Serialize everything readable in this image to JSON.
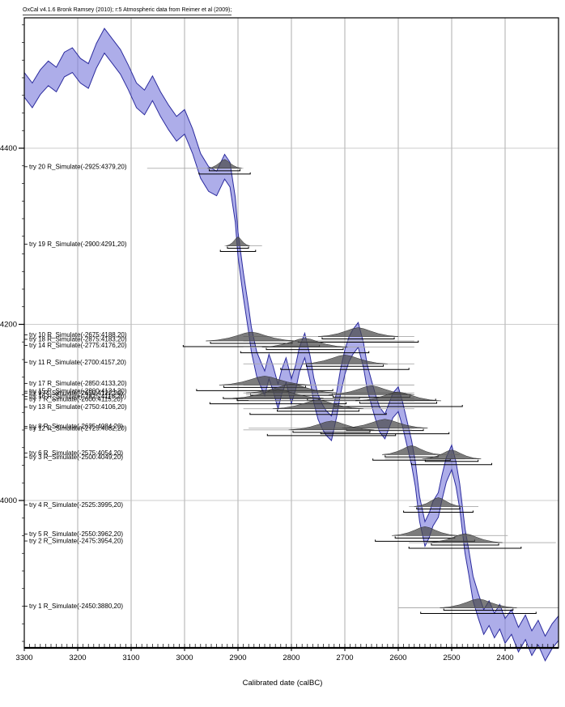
{
  "header": {
    "title": "OxCal v4.1.6 Bronk Ramsey (2010); r:5 Atmospheric data from Reimer et al (2009);"
  },
  "colors": {
    "band_fill": "#7b7bdc",
    "band_edge": "#2b2b9e",
    "distribution_fill": "#4a4a4a",
    "grid": "#999999",
    "range_line": "#aaaaaa",
    "bracket": "#000000",
    "axis": "#000000"
  },
  "chart_data": {
    "type": "line",
    "title": "OxCal v4.1.6 Bronk Ramsey (2010); r:5 Atmospheric data from Reimer et al (2009);",
    "xlabel": "Calibrated date (calBC)",
    "ylabel": "",
    "x_ticks": [
      3300,
      3200,
      3100,
      3000,
      2900,
      2800,
      2700,
      2600,
      2500,
      2400
    ],
    "y_ticks": [
      4400,
      4200,
      4000
    ],
    "x_range_calBC": [
      3300,
      2300
    ],
    "y_range_BP": [
      4548,
      3833
    ],
    "x_minor_step": 10,
    "y_minor_step": 20,
    "grid": true,
    "legend_position": "none",
    "curve_band_halfwidth_bp": 14,
    "calibration_curve": [
      [
        3300,
        4472
      ],
      [
        3285,
        4460
      ],
      [
        3270,
        4475
      ],
      [
        3255,
        4485
      ],
      [
        3240,
        4478
      ],
      [
        3225,
        4495
      ],
      [
        3210,
        4500
      ],
      [
        3195,
        4488
      ],
      [
        3180,
        4482
      ],
      [
        3165,
        4505
      ],
      [
        3150,
        4522
      ],
      [
        3135,
        4510
      ],
      [
        3120,
        4498
      ],
      [
        3105,
        4480
      ],
      [
        3090,
        4460
      ],
      [
        3075,
        4452
      ],
      [
        3060,
        4468
      ],
      [
        3045,
        4450
      ],
      [
        3030,
        4435
      ],
      [
        3015,
        4422
      ],
      [
        3000,
        4430
      ],
      [
        2985,
        4408
      ],
      [
        2970,
        4380
      ],
      [
        2955,
        4365
      ],
      [
        2940,
        4360
      ],
      [
        2925,
        4379
      ],
      [
        2915,
        4370
      ],
      [
        2905,
        4330
      ],
      [
        2900,
        4291
      ],
      [
        2890,
        4245
      ],
      [
        2880,
        4205
      ],
      [
        2875,
        4183
      ],
      [
        2865,
        4155
      ],
      [
        2855,
        4140
      ],
      [
        2850,
        4133
      ],
      [
        2842,
        4152
      ],
      [
        2835,
        4140
      ],
      [
        2825,
        4118
      ],
      [
        2818,
        4135
      ],
      [
        2810,
        4148
      ],
      [
        2800,
        4124
      ],
      [
        2792,
        4140
      ],
      [
        2785,
        4160
      ],
      [
        2775,
        4176
      ],
      [
        2765,
        4150
      ],
      [
        2758,
        4125
      ],
      [
        2750,
        4106
      ],
      [
        2742,
        4095
      ],
      [
        2735,
        4088
      ],
      [
        2725,
        4082
      ],
      [
        2715,
        4110
      ],
      [
        2708,
        4135
      ],
      [
        2700,
        4157
      ],
      [
        2692,
        4172
      ],
      [
        2685,
        4180
      ],
      [
        2675,
        4188
      ],
      [
        2665,
        4165
      ],
      [
        2658,
        4140
      ],
      [
        2650,
        4122
      ],
      [
        2642,
        4105
      ],
      [
        2635,
        4092
      ],
      [
        2625,
        4084
      ],
      [
        2618,
        4095
      ],
      [
        2610,
        4108
      ],
      [
        2600,
        4115
      ],
      [
        2592,
        4098
      ],
      [
        2585,
        4080
      ],
      [
        2575,
        4054
      ],
      [
        2568,
        4030
      ],
      [
        2560,
        3990
      ],
      [
        2550,
        3962
      ],
      [
        2542,
        3972
      ],
      [
        2535,
        3985
      ],
      [
        2525,
        3995
      ],
      [
        2518,
        4015
      ],
      [
        2510,
        4035
      ],
      [
        2500,
        4049
      ],
      [
        2492,
        4030
      ],
      [
        2485,
        4005
      ],
      [
        2475,
        3954
      ],
      [
        2468,
        3930
      ],
      [
        2460,
        3900
      ],
      [
        2450,
        3880
      ],
      [
        2440,
        3862
      ],
      [
        2430,
        3872
      ],
      [
        2420,
        3858
      ],
      [
        2410,
        3868
      ],
      [
        2400,
        3852
      ],
      [
        2388,
        3862
      ],
      [
        2375,
        3842
      ],
      [
        2362,
        3856
      ],
      [
        2350,
        3838
      ],
      [
        2338,
        3850
      ],
      [
        2325,
        3832
      ],
      [
        2312,
        3846
      ],
      [
        2300,
        3855
      ]
    ],
    "samples": [
      {
        "label": "try 20 R_Simulate(-2925:4379,20)",
        "try": 20,
        "cal_bc": 2925,
        "bp": 4379,
        "error": 20,
        "hw_yr": 32,
        "range": [
          3070,
          2890
        ]
      },
      {
        "label": "try 19 R_Simulate(-2900:4291,20)",
        "try": 19,
        "cal_bc": 2900,
        "bp": 4291,
        "error": 20,
        "hw_yr": 22,
        "range": [
          2925,
          2855
        ]
      },
      {
        "label": "try 10 R_Simulate(-2675:4188,20)",
        "try": 10,
        "cal_bc": 2675,
        "bp": 4188,
        "error": 20,
        "hw_yr": 75,
        "range": [
          2890,
          2570
        ]
      },
      {
        "label": "try 18 R_Simulate(-2875:4183,20)",
        "try": 18,
        "cal_bc": 2875,
        "bp": 4183,
        "error": 20,
        "hw_yr": 85,
        "range": [
          2890,
          2570
        ]
      },
      {
        "label": "try 14 R_Simulate(-2775:4176,20)",
        "try": 14,
        "cal_bc": 2775,
        "bp": 4176,
        "error": 20,
        "hw_yr": 80,
        "range": [
          2890,
          2570
        ]
      },
      {
        "label": "try 11 R_Simulate(-2700:4157,20)",
        "try": 11,
        "cal_bc": 2700,
        "bp": 4157,
        "error": 20,
        "hw_yr": 80,
        "range": [
          2890,
          2570
        ]
      },
      {
        "label": "try 17 R_Simulate(-2850:4133,20)",
        "try": 17,
        "cal_bc": 2850,
        "bp": 4133,
        "error": 20,
        "hw_yr": 85,
        "range": [
          2890,
          2570
        ]
      },
      {
        "label": "try 15 R_Simulate(-2800:4124,20)",
        "try": 15,
        "cal_bc": 2800,
        "bp": 4124,
        "error": 20,
        "hw_yr": 85,
        "range": [
          2890,
          2570
        ]
      },
      {
        "label": "try 9 R_Simulate(-2650:4122,20)",
        "try": 9,
        "cal_bc": 2650,
        "bp": 4122,
        "error": 20,
        "hw_yr": 80,
        "range": [
          2885,
          2575
        ]
      },
      {
        "label": "try 16 R_Simulate(-2825:4118,20)",
        "try": 16,
        "cal_bc": 2825,
        "bp": 4118,
        "error": 20,
        "hw_yr": 85,
        "range": [
          2890,
          2570
        ]
      },
      {
        "label": "try 7 R_Simulate(-2600:4115,20)",
        "try": 7,
        "cal_bc": 2600,
        "bp": 4115,
        "error": 20,
        "hw_yr": 80,
        "range": [
          2880,
          2570
        ]
      },
      {
        "label": "try 13 R_Simulate(-2750:4106,20)",
        "try": 13,
        "cal_bc": 2750,
        "bp": 4106,
        "error": 20,
        "hw_yr": 85,
        "range": [
          2890,
          2570
        ]
      },
      {
        "label": "try 8 R_Simulate(-2625:4084,20)",
        "try": 8,
        "cal_bc": 2625,
        "bp": 4084,
        "error": 20,
        "hw_yr": 80,
        "range": [
          2880,
          2570
        ]
      },
      {
        "label": "try 12 R_Simulate(-2725:4082,20)",
        "try": 12,
        "cal_bc": 2725,
        "bp": 4082,
        "error": 20,
        "hw_yr": 80,
        "range": [
          2890,
          2575
        ]
      },
      {
        "label": "try 6 R_Simulate(-2575:4054,20)",
        "try": 6,
        "cal_bc": 2575,
        "bp": 4054,
        "error": 20,
        "hw_yr": 55,
        "range": [
          2630,
          2485
        ]
      },
      {
        "label": "try 3 R_Simulate(-2500:4049,20)",
        "try": 3,
        "cal_bc": 2500,
        "bp": 4049,
        "error": 20,
        "hw_yr": 55,
        "range": [
          2625,
          2475
        ]
      },
      {
        "label": "try 4 R_Simulate(-2525:3995,20)",
        "try": 4,
        "cal_bc": 2525,
        "bp": 3995,
        "error": 20,
        "hw_yr": 45,
        "range": [
          2580,
          2450
        ]
      },
      {
        "label": "try 5 R_Simulate(-2550:3962,20)",
        "try": 5,
        "cal_bc": 2550,
        "bp": 3962,
        "error": 20,
        "hw_yr": 62,
        "range": [
          2585,
          2395
        ]
      },
      {
        "label": "try 2 R_Simulate(-2475:3954,20)",
        "try": 2,
        "cal_bc": 2475,
        "bp": 3954,
        "error": 20,
        "hw_yr": 70,
        "range": [
          2580,
          2305
        ]
      },
      {
        "label": "try 1 R_Simulate(-2450:3880,20)",
        "try": 1,
        "cal_bc": 2450,
        "bp": 3880,
        "error": 20,
        "hw_yr": 72,
        "range": [
          2600,
          2300
        ]
      }
    ]
  }
}
